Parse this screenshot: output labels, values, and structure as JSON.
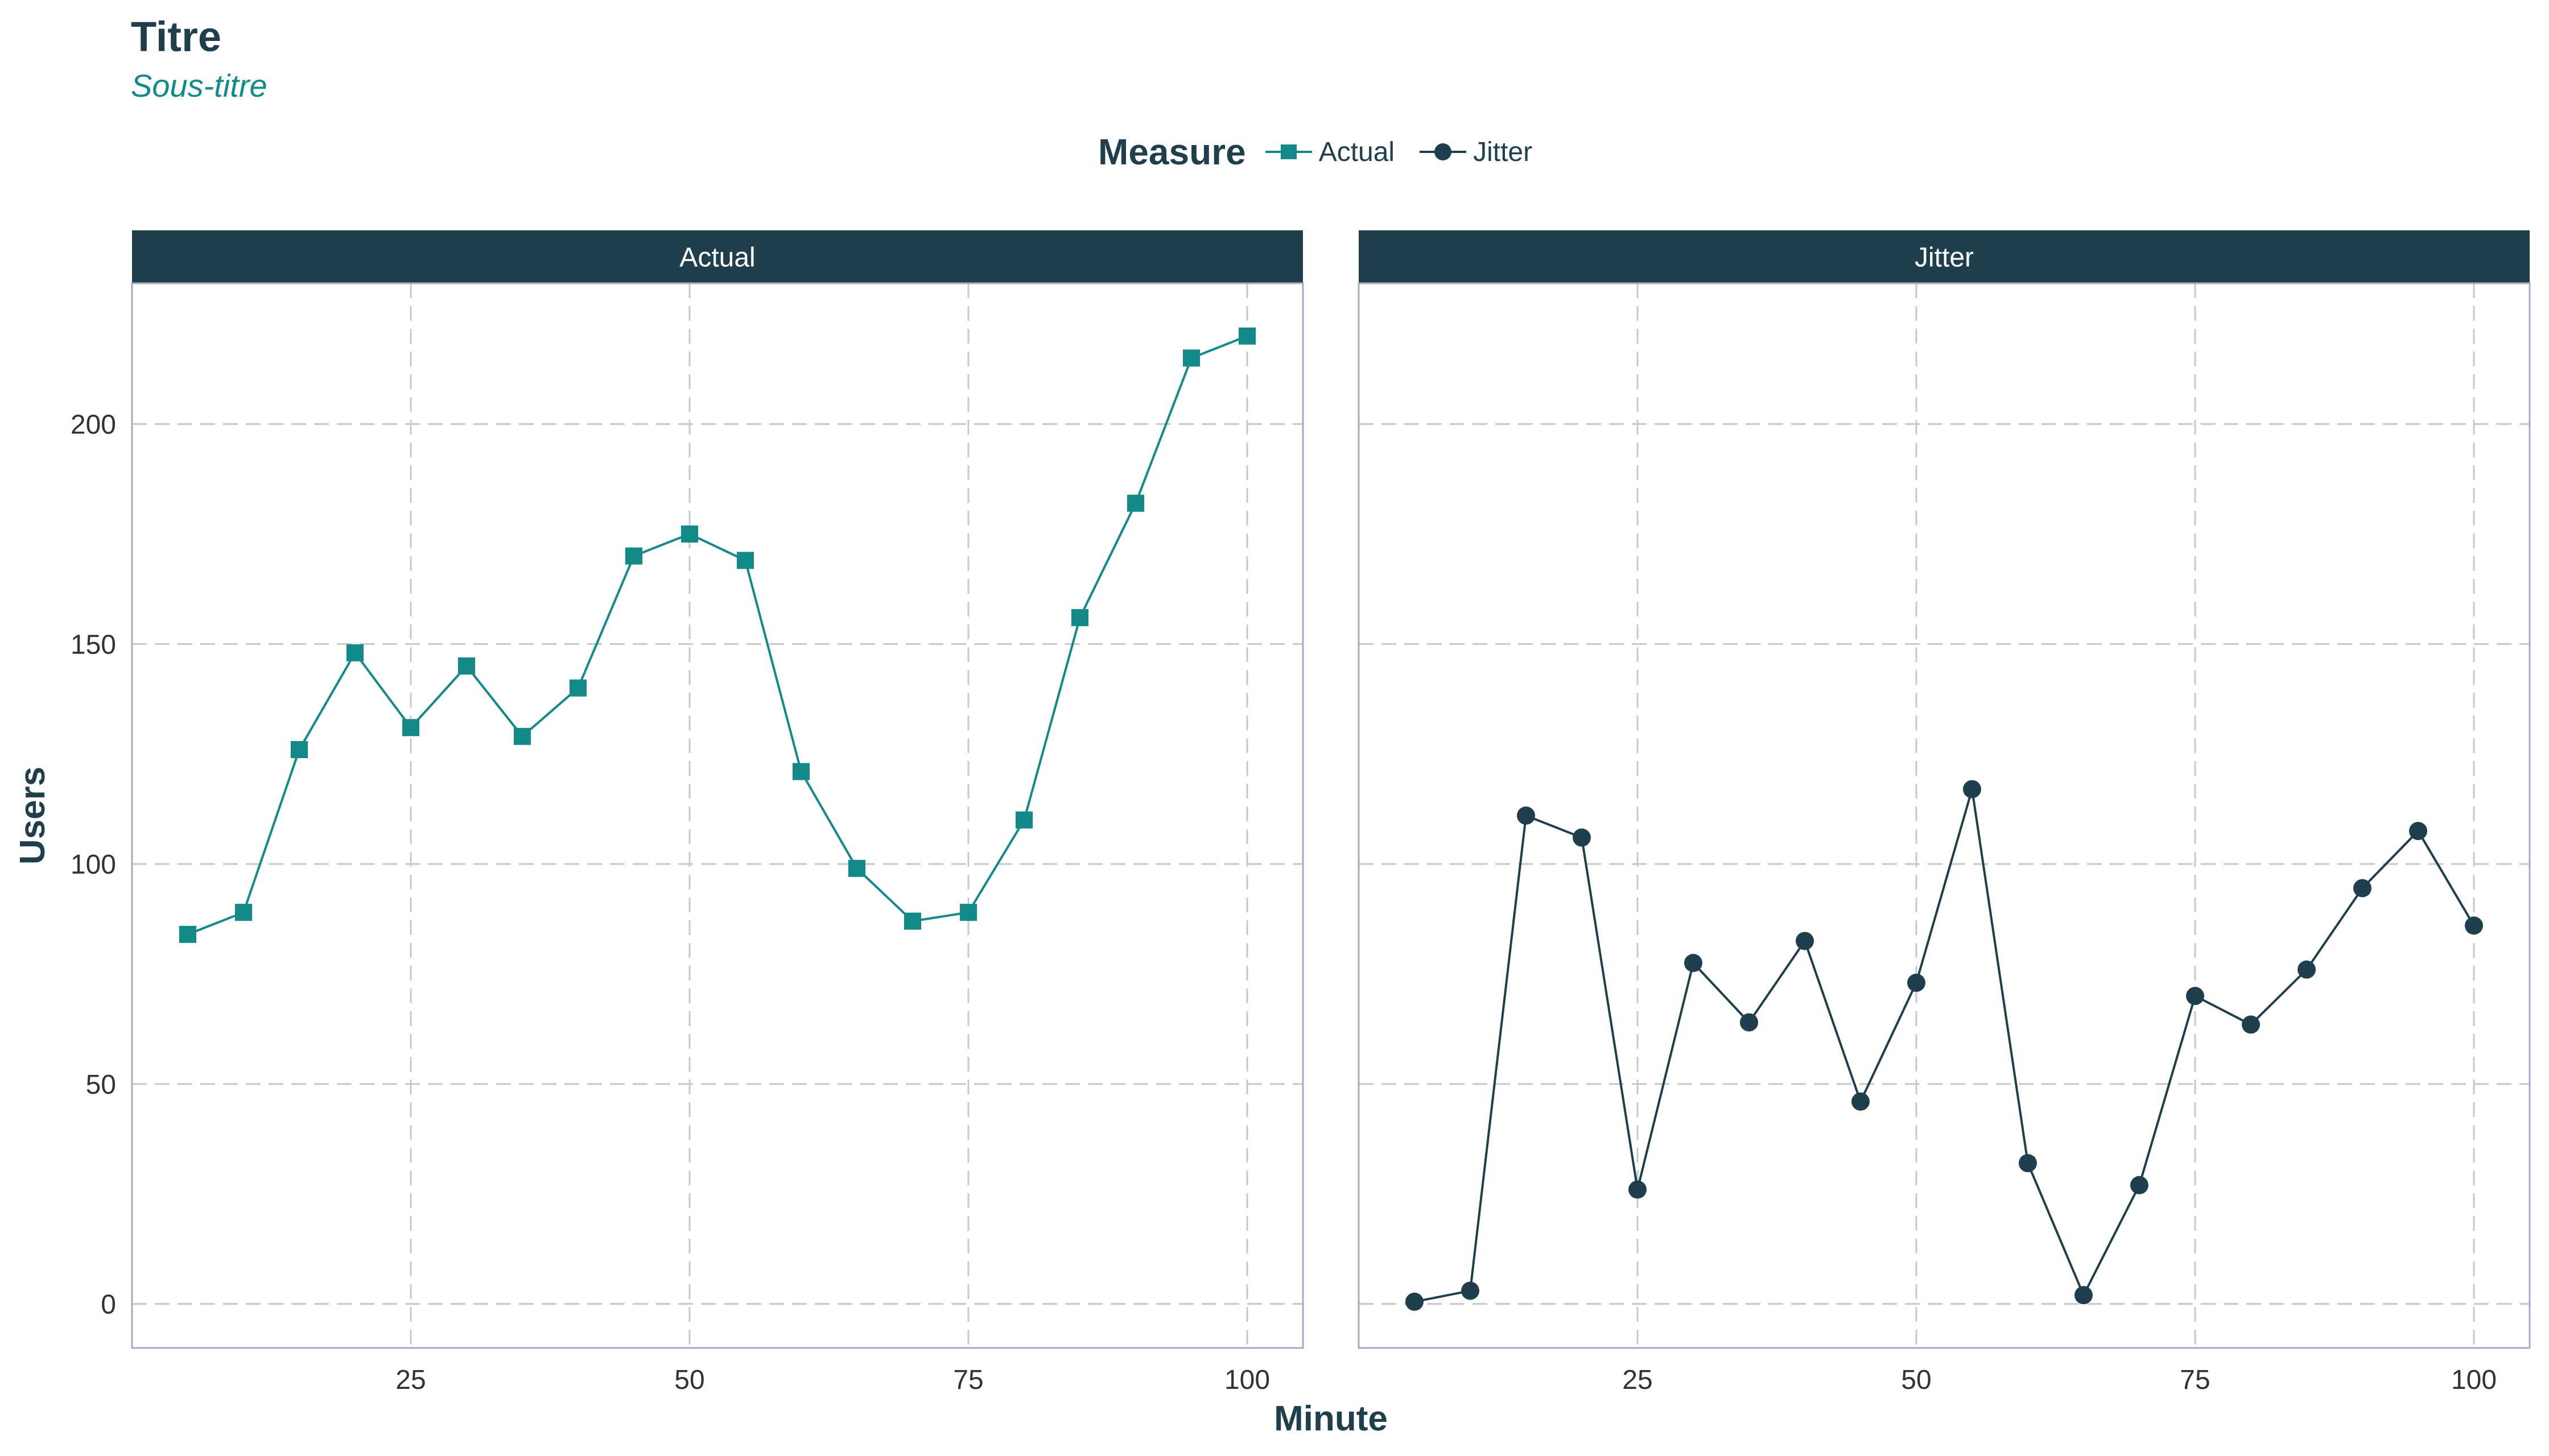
{
  "title": "Titre",
  "subtitle": "Sous-titre",
  "legend": {
    "title": "Measure",
    "items": [
      {
        "label": "Actual",
        "color": "#128a8a",
        "shape": "square"
      },
      {
        "label": "Jitter",
        "color": "#1f3f4d",
        "shape": "circle"
      }
    ],
    "position": "top"
  },
  "chart_data": {
    "type": "line",
    "xlabel": "Minute",
    "ylabel": "Users",
    "xlim": [
      0,
      105
    ],
    "ylim": [
      -10,
      232
    ],
    "x_ticks": [
      25,
      50,
      75,
      100
    ],
    "y_ticks": [
      0,
      50,
      100,
      150,
      200
    ],
    "grid": "dashed",
    "x": [
      5,
      10,
      15,
      20,
      25,
      30,
      35,
      40,
      45,
      50,
      55,
      60,
      65,
      70,
      75,
      80,
      85,
      90,
      95,
      100
    ],
    "panels": [
      {
        "strip_label": "Actual",
        "series": [
          {
            "name": "Actual",
            "color": "#128a8a",
            "marker": "square",
            "values": [
              84,
              89,
              126,
              148,
              131,
              145,
              129,
              140,
              170,
              175,
              169,
              121,
              99,
              87,
              89,
              110,
              156,
              182,
              215,
              220
            ]
          }
        ]
      },
      {
        "strip_label": "Jitter",
        "series": [
          {
            "name": "Jitter",
            "color": "#1f3f4d",
            "marker": "circle",
            "values": [
              0.5,
              3,
              111,
              106,
              26,
              77.5,
              64,
              82.5,
              46,
              73,
              117,
              32,
              2,
              27,
              70,
              63.5,
              76,
              94.5,
              107.5,
              86
            ]
          }
        ]
      }
    ]
  },
  "colors": {
    "strip_background": "#1f3f4d",
    "panel_border": "#a9a6c8",
    "grid": "#c7c7cc",
    "text": "#1f3f4d"
  }
}
